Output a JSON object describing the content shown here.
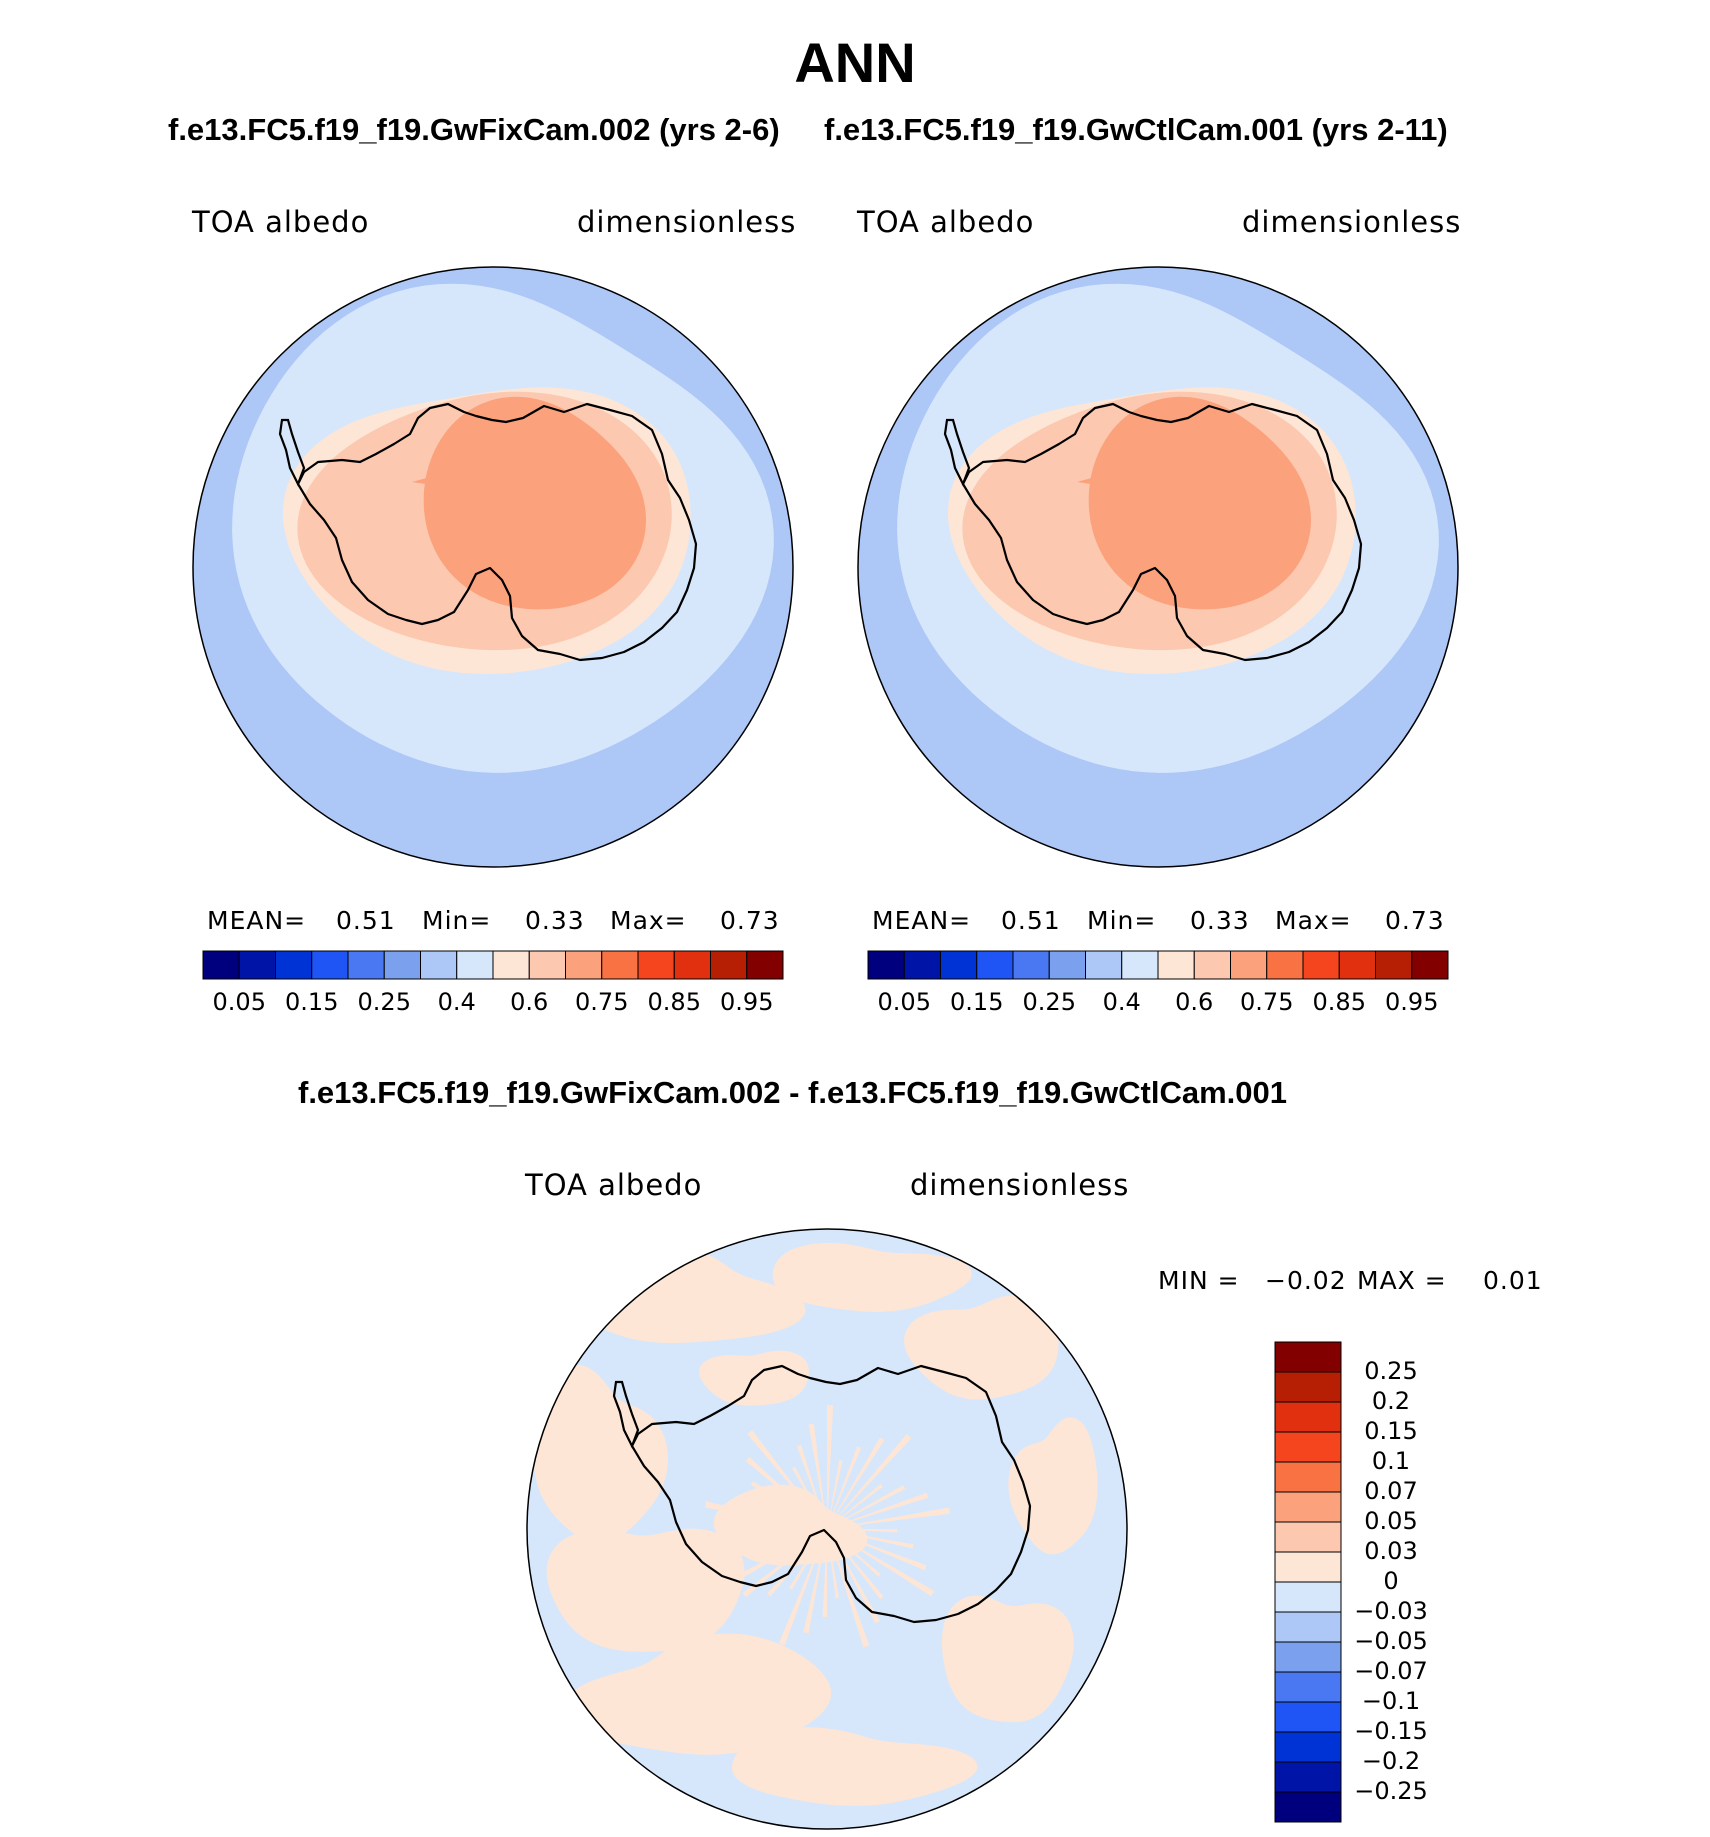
{
  "title": "ANN",
  "top_titles": {
    "left": "f.e13.FC5.f19_f19.GwFixCam.002 (yrs 2-6)",
    "right": "f.e13.FC5.f19_f19.GwCtlCam.001 (yrs 2-11)"
  },
  "diff_title": "f.e13.FC5.f19_f19.GwFixCam.002 - f.e13.FC5.f19_f19.GwCtlCam.001",
  "panels": [
    {
      "variable": "TOA albedo",
      "units": "dimensionless",
      "stats": {
        "mean_label": "MEAN=",
        "mean": "0.51",
        "min_label": "Min=",
        "min": "0.33",
        "max_label": "Max=",
        "max": "0.73"
      }
    },
    {
      "variable": "TOA albedo",
      "units": "dimensionless",
      "stats": {
        "mean_label": "MEAN=",
        "mean": "0.51",
        "min_label": "Min=",
        "min": "0.33",
        "max_label": "Max=",
        "max": "0.73"
      }
    }
  ],
  "diff_panel": {
    "variable": "TOA albedo",
    "units": "dimensionless",
    "stats": {
      "min_label": "MIN =",
      "min": "−0.02",
      "max_label": "MAX =",
      "max": "0.01"
    }
  },
  "colorbar_abs": {
    "colors": [
      "#00007f",
      "#0014a8",
      "#0033d6",
      "#1f55f5",
      "#4a78f2",
      "#7aa0ee",
      "#adc7f7",
      "#d6e7fc",
      "#fde6d6",
      "#fcc8b0",
      "#fba17c",
      "#f87244",
      "#f5451f",
      "#e03010",
      "#b71f05",
      "#820000"
    ],
    "tick_labels": [
      "0.05",
      "0.15",
      "0.25",
      "0.4",
      "0.6",
      "0.75",
      "0.85",
      "0.95"
    ]
  },
  "colorbar_diff": {
    "colors_top_to_bottom": [
      "#820000",
      "#b71f05",
      "#e03010",
      "#f5451f",
      "#f87244",
      "#fba17c",
      "#fcc8b0",
      "#fde6d6",
      "#d6e7fc",
      "#adc7f7",
      "#7aa0ee",
      "#4a78f2",
      "#1f55f5",
      "#0033d6",
      "#0014a8",
      "#00007f"
    ],
    "tick_labels": [
      "0.25",
      "0.2",
      "0.15",
      "0.1",
      "0.07",
      "0.05",
      "0.03",
      "0",
      "−0.03",
      "−0.05",
      "−0.07",
      "−0.1",
      "−0.15",
      "−0.2",
      "−0.25"
    ]
  },
  "field_colors": {
    "ocean_outer": "#adc7f7",
    "ocean_inner": "#d6e7fc",
    "coast_band": "#fde6d6",
    "land_low": "#fcc8b0",
    "land_high": "#fba17c",
    "diff_pos": "#fde6d6",
    "diff_neg": "#d6e7fc",
    "coastline": "#000000"
  }
}
